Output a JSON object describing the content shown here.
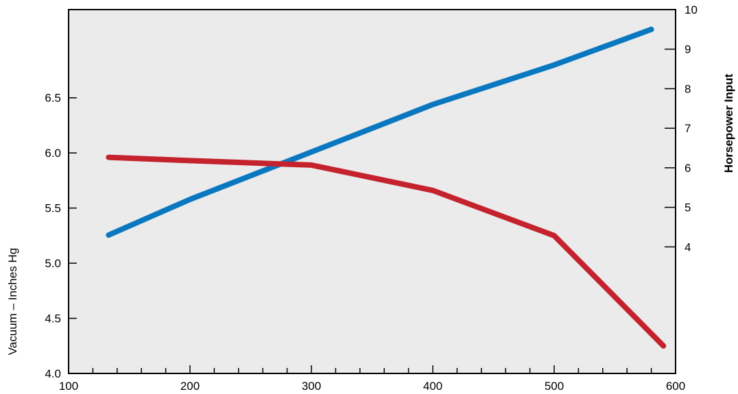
{
  "chart_data": {
    "type": "line",
    "title": "",
    "xlabel": "",
    "ylabel_left": "Vacuum – Inches Hg",
    "ylabel_right": "Horsepower Input",
    "xlim": [
      100,
      600
    ],
    "ylim_left": [
      4.0,
      7.3
    ],
    "ylim_right": [
      0.8,
      10
    ],
    "x_ticks": [
      "100",
      "200",
      "300",
      "400",
      "500",
      "600"
    ],
    "y_left_ticks": [
      "4.0",
      "4.5",
      "5.0",
      "5.5",
      "6.0",
      "6.5"
    ],
    "y_right_ticks": [
      "4",
      "5",
      "6",
      "7",
      "8",
      "9",
      "10"
    ],
    "grid": false,
    "series": [
      {
        "axis": "right",
        "color": "#0a78c0",
        "x": [
          133,
          200,
          300,
          400,
          500,
          580
        ],
        "y": [
          4.3,
          5.2,
          6.4,
          7.6,
          8.6,
          9.5
        ]
      },
      {
        "axis": "left",
        "color": "#c4232e",
        "x": [
          133,
          200,
          300,
          400,
          500,
          590
        ],
        "y": [
          5.96,
          5.93,
          5.89,
          5.66,
          5.25,
          4.25
        ]
      }
    ],
    "colors": {
      "plot_background": "#ebebeb",
      "title": "#c01a5a"
    }
  }
}
